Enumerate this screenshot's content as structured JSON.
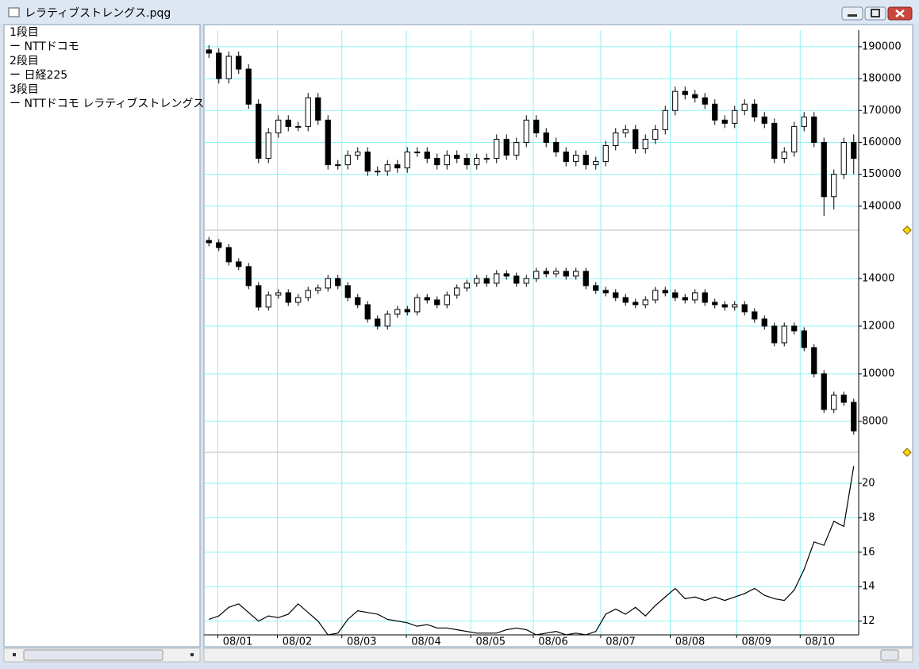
{
  "window": {
    "title": "レラティブストレングス.pqg"
  },
  "legend": [
    "1段目",
    "ー NTTドコモ",
    "2段目",
    "ー 日経225",
    "3段目",
    "ー NTTドコモ レラティブストレングス"
  ],
  "chart_data": [
    {
      "type": "candlestick",
      "xlim": [
        0,
        66
      ],
      "ylim": [
        132500,
        195200
      ],
      "yticks": [
        140000,
        150000,
        160000,
        170000,
        180000,
        190000
      ],
      "grid": true,
      "color": "#000000",
      "open": [
        189000,
        188000,
        180000,
        187000,
        183000,
        172000,
        155000,
        163000,
        167000,
        165000,
        165000,
        174000,
        167000,
        153000,
        153000,
        156000,
        157000,
        151000,
        151000,
        153000,
        152000,
        157000,
        157000,
        155000,
        153000,
        156000,
        155000,
        153000,
        155000,
        155000,
        161000,
        156000,
        160000,
        167000,
        163000,
        160000,
        157000,
        154000,
        156000,
        153000,
        154000,
        159000,
        163000,
        164000,
        158000,
        161000,
        164000,
        170000,
        176000,
        175000,
        174000,
        172000,
        167000,
        166000,
        170000,
        172000,
        168000,
        166000,
        155000,
        157000,
        165000,
        168000,
        160000,
        143000,
        150000,
        160000
      ],
      "high": [
        190500,
        189500,
        188500,
        188500,
        184500,
        173500,
        164500,
        168500,
        168500,
        166500,
        175500,
        175500,
        168500,
        154500,
        157500,
        158500,
        158500,
        152500,
        154500,
        154500,
        158500,
        158500,
        158500,
        156500,
        157500,
        157500,
        156500,
        156500,
        156500,
        162500,
        162500,
        161500,
        168500,
        168500,
        164500,
        161500,
        158500,
        157500,
        157500,
        155500,
        160500,
        164500,
        165500,
        165500,
        162500,
        165500,
        171500,
        177500,
        177500,
        176500,
        175500,
        173500,
        168500,
        171500,
        173500,
        173500,
        169500,
        167500,
        158500,
        166500,
        169500,
        169500,
        161500,
        151500,
        161500,
        162500
      ],
      "low": [
        186500,
        178500,
        178500,
        181500,
        170500,
        153500,
        153500,
        161500,
        163500,
        163500,
        163500,
        165500,
        151500,
        151500,
        151500,
        154500,
        149500,
        149500,
        149500,
        150500,
        150500,
        155500,
        153500,
        151500,
        151500,
        153500,
        151500,
        151500,
        153500,
        153500,
        154500,
        154500,
        158500,
        161500,
        158500,
        155500,
        152500,
        152500,
        151500,
        151500,
        152500,
        157500,
        161500,
        156500,
        156500,
        159500,
        162500,
        168500,
        173500,
        172500,
        170500,
        165500,
        164500,
        164500,
        168500,
        166500,
        164500,
        153500,
        153500,
        155500,
        163500,
        158500,
        137000,
        139000,
        148500,
        150000
      ],
      "close": [
        188000,
        180000,
        187000,
        183000,
        172000,
        155000,
        163000,
        167000,
        165000,
        165000,
        174000,
        167000,
        153000,
        153000,
        156000,
        157000,
        151000,
        151000,
        153000,
        152000,
        157000,
        157000,
        155000,
        153000,
        156000,
        155000,
        153000,
        155000,
        155000,
        161000,
        156000,
        160000,
        167000,
        163000,
        160000,
        157000,
        154000,
        156000,
        153000,
        154000,
        159000,
        163000,
        164000,
        158000,
        161000,
        164000,
        170000,
        176000,
        175000,
        174000,
        172000,
        167000,
        166000,
        170000,
        172000,
        168000,
        166000,
        155000,
        157000,
        165000,
        168000,
        160000,
        143000,
        150000,
        160000,
        155000
      ]
    },
    {
      "type": "candlestick",
      "xlim": [
        0,
        66
      ],
      "ylim": [
        6700,
        16030
      ],
      "yticks": [
        8000,
        10000,
        12000,
        14000
      ],
      "grid": true,
      "color": "#000000",
      "open": [
        15600,
        15500,
        15300,
        14700,
        14500,
        13700,
        12800,
        13300,
        13400,
        13000,
        13200,
        13500,
        13600,
        14000,
        13700,
        13200,
        12900,
        12300,
        12000,
        12500,
        12700,
        12600,
        13200,
        13100,
        12900,
        13300,
        13600,
        13800,
        14000,
        13800,
        14200,
        14100,
        13800,
        14000,
        14300,
        14200,
        14300,
        14100,
        14300,
        13700,
        13500,
        13400,
        13200,
        13000,
        12900,
        13100,
        13500,
        13400,
        13200,
        13100,
        13400,
        13000,
        12900,
        12800,
        12900,
        12600,
        12300,
        12000,
        11300,
        12000,
        11800,
        11100,
        10000,
        8500,
        9100,
        8800
      ],
      "high": [
        15750,
        15650,
        15450,
        14850,
        14650,
        13850,
        13450,
        13550,
        13550,
        13350,
        13650,
        13750,
        14150,
        14150,
        13850,
        13350,
        13050,
        12450,
        12650,
        12850,
        12850,
        13350,
        13350,
        13250,
        13450,
        13750,
        13950,
        14150,
        14150,
        14350,
        14350,
        14250,
        14150,
        14450,
        14450,
        14450,
        14450,
        14450,
        14450,
        13850,
        13650,
        13550,
        13350,
        13150,
        13250,
        13650,
        13650,
        13550,
        13350,
        13550,
        13550,
        13150,
        13050,
        13050,
        13050,
        12750,
        12450,
        12150,
        12150,
        12150,
        11950,
        11250,
        10150,
        9250,
        9250,
        8950
      ],
      "low": [
        15350,
        15150,
        14550,
        14350,
        13550,
        12650,
        12650,
        13150,
        12850,
        12850,
        13050,
        13350,
        13450,
        13550,
        13050,
        12750,
        12150,
        11850,
        11850,
        12350,
        12450,
        12450,
        12950,
        12750,
        12750,
        13150,
        13450,
        13650,
        13650,
        13650,
        13950,
        13650,
        13650,
        13850,
        14050,
        14050,
        13950,
        13950,
        13550,
        13350,
        13250,
        13050,
        12850,
        12750,
        12750,
        12950,
        13250,
        13050,
        12950,
        12950,
        12850,
        12750,
        12650,
        12650,
        12450,
        12150,
        11850,
        11150,
        11150,
        11650,
        10950,
        9850,
        8350,
        8350,
        8650,
        7450
      ],
      "close": [
        15500,
        15300,
        14700,
        14500,
        13700,
        12800,
        13300,
        13400,
        13000,
        13200,
        13500,
        13600,
        14000,
        13700,
        13200,
        12900,
        12300,
        12000,
        12500,
        12700,
        12600,
        13200,
        13100,
        12900,
        13300,
        13600,
        13800,
        14000,
        13800,
        14200,
        14100,
        13800,
        14000,
        14300,
        14200,
        14300,
        14100,
        14300,
        13700,
        13500,
        13400,
        13200,
        13000,
        12900,
        13100,
        13500,
        13400,
        13200,
        13100,
        13400,
        13000,
        12900,
        12800,
        12900,
        12600,
        12300,
        12000,
        11300,
        12000,
        11800,
        11100,
        10000,
        8500,
        9100,
        8800,
        7600
      ]
    },
    {
      "type": "line",
      "xlim": [
        0,
        66
      ],
      "ylim": [
        11.2,
        21.8
      ],
      "yticks": [
        12,
        14,
        16,
        18,
        20
      ],
      "grid": true,
      "color": "#000000",
      "xticks": [
        {
          "value": 1.4,
          "label": "08/01"
        },
        {
          "value": 7.4,
          "label": "08/02"
        },
        {
          "value": 13.9,
          "label": "08/03"
        },
        {
          "value": 20.4,
          "label": "08/04"
        },
        {
          "value": 26.9,
          "label": "08/05"
        },
        {
          "value": 33.2,
          "label": "08/06"
        },
        {
          "value": 40,
          "label": "08/07"
        },
        {
          "value": 47,
          "label": "08/08"
        },
        {
          "value": 53.7,
          "label": "08/09"
        },
        {
          "value": 60.1,
          "label": "08/10"
        }
      ],
      "values": [
        12.1,
        12.3,
        12.8,
        13.0,
        12.5,
        12.0,
        12.3,
        12.2,
        12.4,
        13.0,
        12.5,
        12.0,
        11.2,
        11.3,
        12.1,
        12.6,
        12.5,
        12.4,
        12.1,
        12.0,
        11.9,
        11.7,
        11.8,
        11.6,
        11.6,
        11.5,
        11.4,
        11.3,
        11.3,
        11.3,
        11.5,
        11.6,
        11.5,
        11.2,
        11.3,
        11.4,
        11.2,
        11.3,
        11.2,
        11.4,
        12.4,
        12.7,
        12.4,
        12.8,
        12.3,
        12.9,
        13.4,
        13.9,
        13.3,
        13.4,
        13.2,
        13.4,
        13.2,
        13.4,
        13.6,
        13.9,
        13.5,
        13.3,
        13.2,
        13.8,
        15.0,
        16.6,
        16.4,
        17.8,
        17.5,
        21.0
      ]
    }
  ]
}
